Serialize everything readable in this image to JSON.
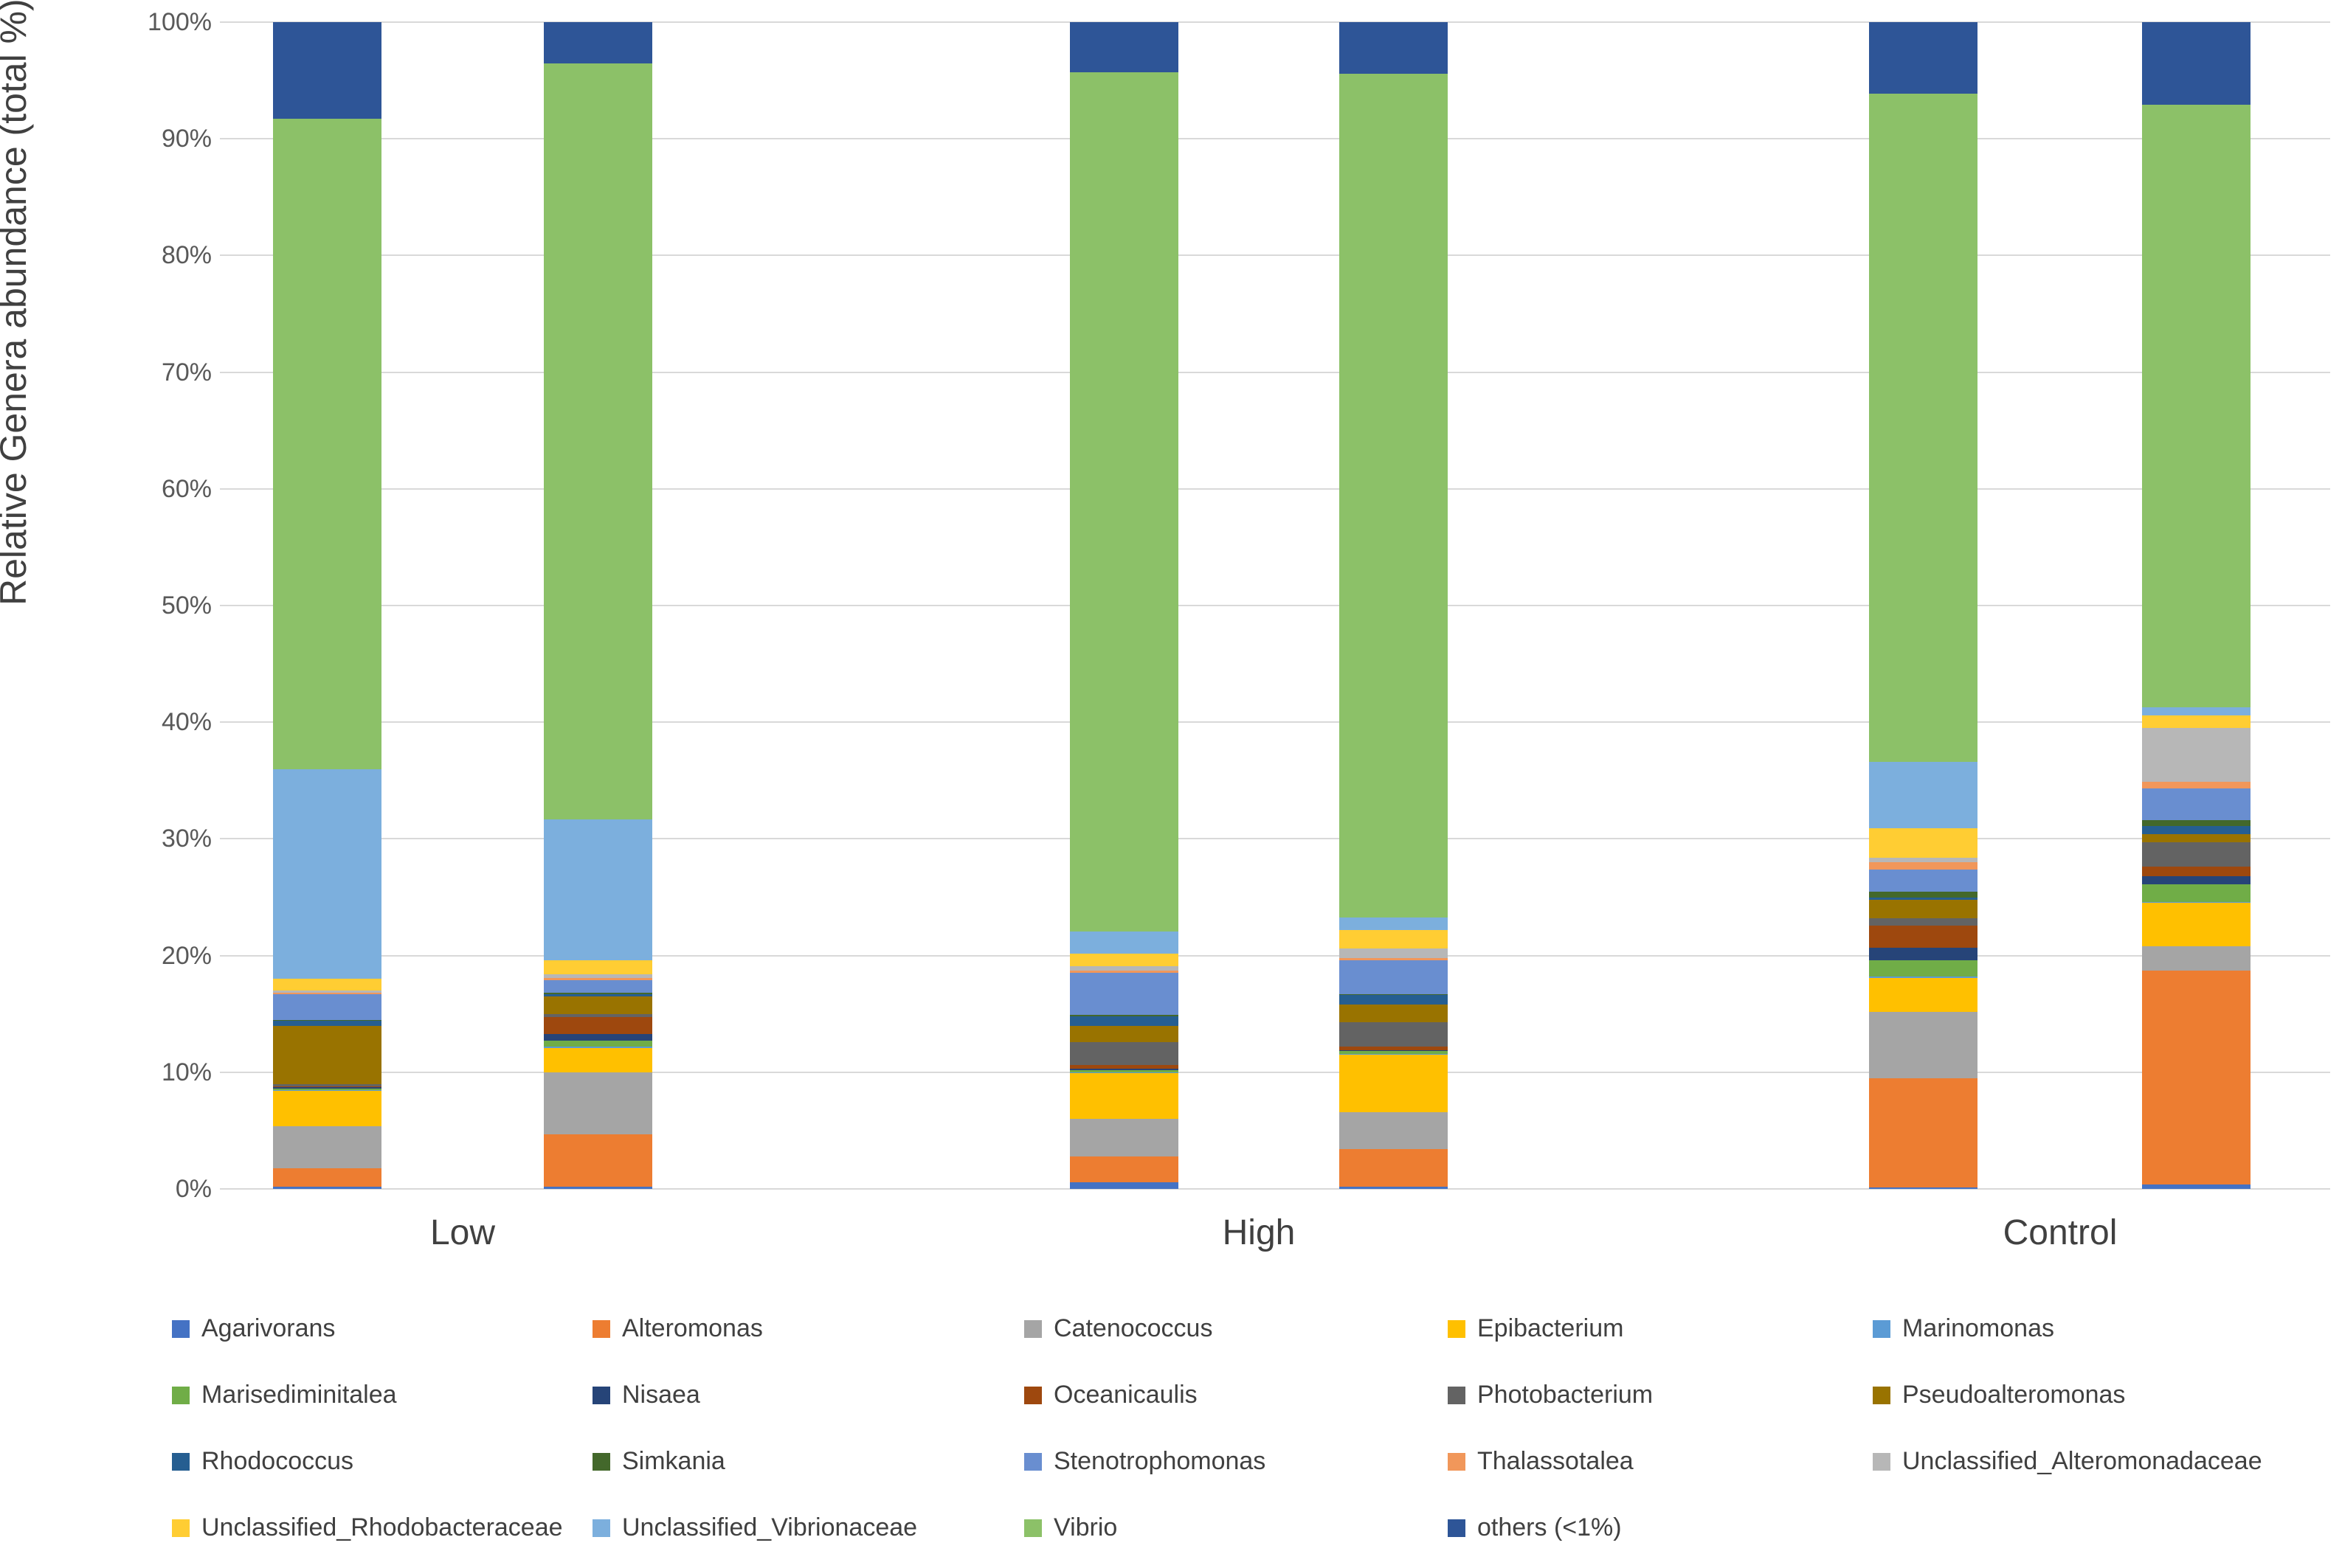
{
  "chart_data": {
    "type": "bar",
    "stacked": true,
    "orientation": "vertical",
    "ylabel": "Relative Genera abundance (total %)",
    "xlabel": "",
    "ylim": [
      0,
      100
    ],
    "grid": true,
    "legend_position": "bottom",
    "y_ticks": [
      0,
      10,
      20,
      30,
      40,
      50,
      60,
      70,
      80,
      90,
      100
    ],
    "y_tick_labels": [
      "0%",
      "10%",
      "20%",
      "30%",
      "40%",
      "50%",
      "60%",
      "70%",
      "80%",
      "90%",
      "100%"
    ],
    "groups": [
      "Low",
      "High",
      "Control"
    ],
    "bars_per_group": 2,
    "bar_group_index": [
      0,
      0,
      1,
      1,
      2,
      2
    ],
    "series": [
      {
        "name": "Agarivorans",
        "color": "#4472C4",
        "values": [
          0.2,
          0.2,
          0.6,
          0.2,
          0.1,
          0.4
        ]
      },
      {
        "name": "Alteromonas",
        "color": "#ED7D31",
        "values": [
          1.6,
          4.5,
          2.2,
          3.2,
          9.4,
          18.3
        ]
      },
      {
        "name": "Catenococcus",
        "color": "#A5A5A5",
        "values": [
          3.6,
          5.3,
          3.2,
          3.2,
          5.7,
          2.1
        ]
      },
      {
        "name": "Epibacterium",
        "color": "#FFC000",
        "values": [
          3.0,
          2.1,
          3.9,
          4.9,
          2.9,
          3.7
        ]
      },
      {
        "name": "Marinomonas",
        "color": "#5B9BD5",
        "values": [
          0.1,
          0.1,
          0.1,
          0.1,
          0.1,
          0.1
        ]
      },
      {
        "name": "Marisediminitalea",
        "color": "#70AD47",
        "values": [
          0.1,
          0.5,
          0.2,
          0.2,
          1.4,
          1.5
        ]
      },
      {
        "name": "Nisaea",
        "color": "#264478",
        "values": [
          0.1,
          0.6,
          0.1,
          0.1,
          1.1,
          0.7
        ]
      },
      {
        "name": "Oceanicaulis",
        "color": "#9E480E",
        "values": [
          0.1,
          1.4,
          0.3,
          0.3,
          1.9,
          0.8
        ]
      },
      {
        "name": "Photobacterium",
        "color": "#636363",
        "values": [
          0.2,
          0.3,
          2.0,
          2.1,
          0.6,
          2.1
        ]
      },
      {
        "name": "Pseudoalteromonas",
        "color": "#997300",
        "values": [
          5.0,
          1.5,
          1.4,
          1.5,
          1.6,
          0.7
        ]
      },
      {
        "name": "Rhodococcus",
        "color": "#255E91",
        "values": [
          0.4,
          0.2,
          0.8,
          0.8,
          0.2,
          0.7
        ]
      },
      {
        "name": "Simkania",
        "color": "#43682B",
        "values": [
          0.1,
          0.1,
          0.1,
          0.1,
          0.5,
          0.5
        ]
      },
      {
        "name": "Stenotrophomonas",
        "color": "#698ED0",
        "values": [
          2.2,
          1.1,
          3.6,
          2.9,
          1.9,
          2.7
        ]
      },
      {
        "name": "Thalassotalea",
        "color": "#F1975A",
        "values": [
          0.1,
          0.2,
          0.2,
          0.2,
          0.6,
          0.6
        ]
      },
      {
        "name": "Unclassified_Alteromonadaceae",
        "color": "#B7B7B7",
        "values": [
          0.2,
          0.3,
          0.4,
          0.8,
          0.4,
          4.6
        ]
      },
      {
        "name": "Unclassified_Rhodobacteraceae",
        "color": "#FFCD33",
        "values": [
          1.0,
          1.2,
          1.1,
          1.6,
          2.5,
          1.1
        ]
      },
      {
        "name": "Unclassified_Vibrionaceae",
        "color": "#7CAFDD",
        "values": [
          18.0,
          12.1,
          1.9,
          1.1,
          5.7,
          0.7
        ]
      },
      {
        "name": "Vibrio",
        "color": "#8CC168",
        "values": [
          55.7,
          64.8,
          73.6,
          72.3,
          57.3,
          51.6
        ]
      },
      {
        "name": "others (<1%)",
        "color": "#2E5597",
        "values": [
          8.3,
          3.5,
          4.3,
          4.4,
          6.1,
          7.1
        ]
      }
    ]
  }
}
